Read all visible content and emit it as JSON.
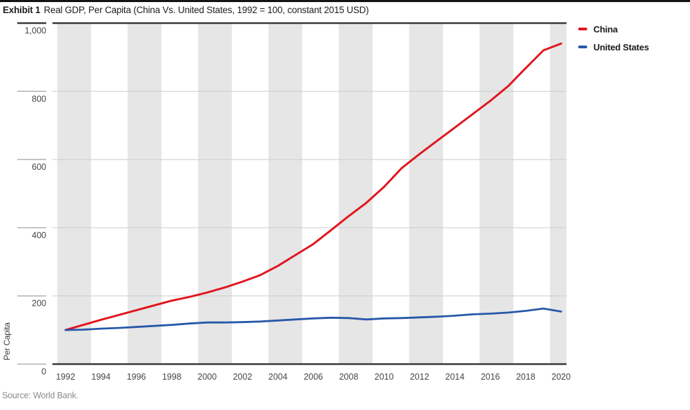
{
  "page": {
    "title_prefix": "Exhibit 1",
    "title_rest": "Real GDP, Per Capita (China Vs. United States, 1992 = 100, constant 2015 USD)",
    "source": "Source: World Bank."
  },
  "chart_data": {
    "type": "line",
    "title": "Exhibit 1 Real GDP, Per Capita (China Vs. United States, 1992 = 100, constant 2015 USD)",
    "xlabel": "",
    "ylabel": "Per Capita",
    "ylim": [
      0,
      1000
    ],
    "xlim": [
      1992,
      2020
    ],
    "grid": "horizontal gridlines at every 200",
    "background_bands": "alternating vertical light-gray stripes, ~2 years wide, 4-year period",
    "legend_position": "top-right outside plot",
    "y_ticks": [
      0,
      200,
      400,
      600,
      800,
      1000
    ],
    "y_tick_labels": [
      "0",
      "200",
      "400",
      "600",
      "800",
      "1,000"
    ],
    "x_ticks": [
      1992,
      1994,
      1996,
      1998,
      2000,
      2002,
      2004,
      2006,
      2008,
      2010,
      2012,
      2014,
      2016,
      2018,
      2020
    ],
    "x": [
      1992,
      1993,
      1994,
      1995,
      1996,
      1997,
      1998,
      1999,
      2000,
      2001,
      2002,
      2003,
      2004,
      2005,
      2006,
      2007,
      2008,
      2009,
      2010,
      2011,
      2012,
      2013,
      2014,
      2015,
      2016,
      2017,
      2018,
      2019,
      2020
    ],
    "series": [
      {
        "name": "China",
        "color": "#e0161f",
        "values": [
          100,
          115,
          130,
          144,
          158,
          172,
          186,
          197,
          210,
          225,
          242,
          261,
          288,
          320,
          352,
          393,
          434,
          473,
          520,
          575,
          616,
          655,
          694,
          733,
          772,
          815,
          868,
          920,
          940
        ]
      },
      {
        "name": "United States",
        "color": "#2757a8",
        "values": [
          100,
          101,
          104,
          106,
          109,
          112,
          115,
          119,
          122,
          122,
          123,
          125,
          128,
          131,
          134,
          136,
          135,
          131,
          134,
          135,
          137,
          139,
          142,
          146,
          148,
          151,
          156,
          163,
          154
        ]
      }
    ],
    "colors": {
      "band": "#e6e6e6",
      "gridline": "#cccccc",
      "axis_dark": "#3a3a3a",
      "tick_text": "#454545"
    }
  }
}
